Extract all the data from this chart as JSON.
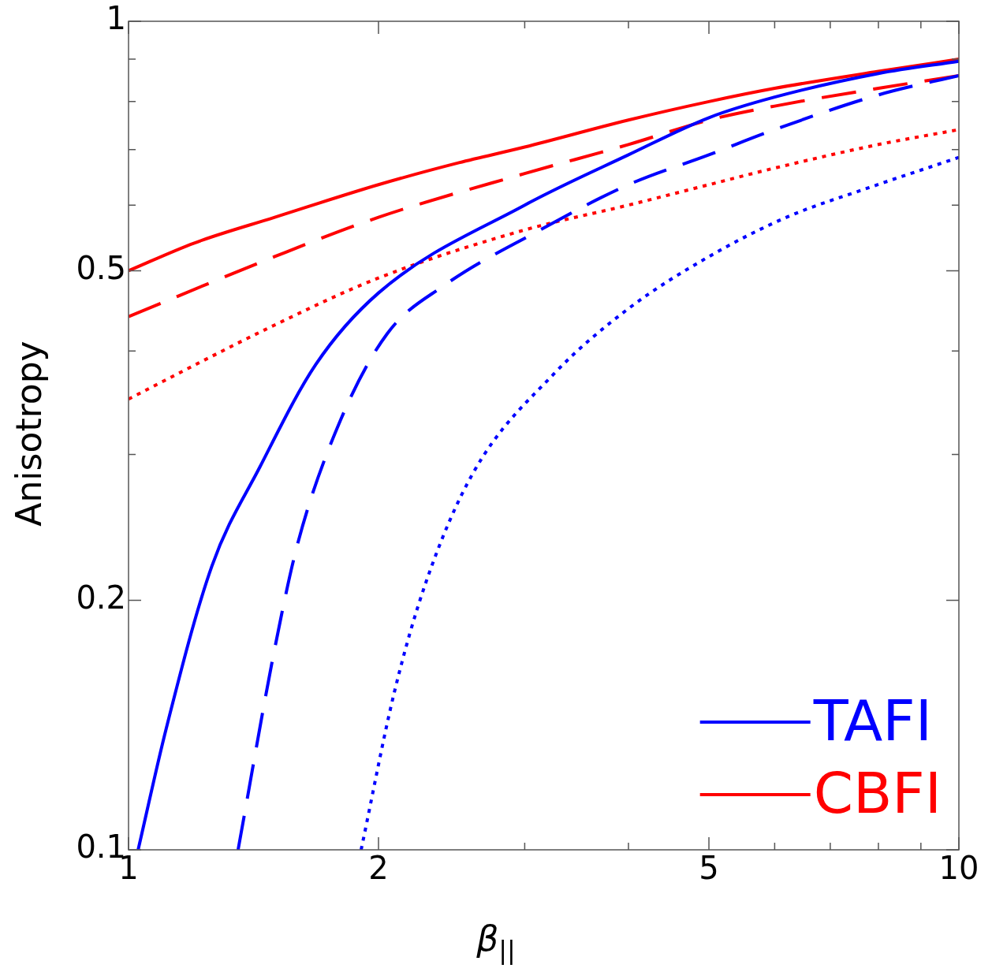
{
  "chart_data": {
    "type": "line",
    "xlabel": "β$_{||}$",
    "ylabel": "Anisotropy",
    "log": "xy",
    "xlim": [
      1,
      10
    ],
    "ylim": [
      0.1,
      1
    ],
    "xticks": [
      1,
      2,
      {
        "value": 3,
        "label": null
      },
      {
        "value": 4,
        "label": null
      },
      5,
      {
        "value": 6,
        "label": null
      },
      {
        "value": 7,
        "label": null
      },
      {
        "value": 8,
        "label": null
      },
      {
        "value": 9,
        "label": null
      },
      10
    ],
    "yticks": [
      0.1,
      {
        "value": 0.3,
        "label": null
      },
      {
        "value": 0.4,
        "label": null
      },
      0.2,
      0.5,
      {
        "value": 0.6,
        "label": null
      },
      {
        "value": 0.7,
        "label": null
      },
      {
        "value": 0.8,
        "label": null
      },
      {
        "value": 0.9,
        "label": null
      },
      1
    ],
    "grid": false,
    "legend": "bottom right",
    "marker": "none",
    "series": [
      {
        "name": "TAFI",
        "color": "#0000ff",
        "line_style": "solid",
        "x": [
          1.027,
          1.11,
          1.26,
          1.44,
          1.68,
          2,
          3,
          4,
          5,
          6,
          8,
          10
        ],
        "values": [
          0.1,
          0.14,
          0.22,
          0.29,
          0.385,
          0.47,
          0.6,
          0.69,
          0.765,
          0.81,
          0.865,
          0.895
        ]
      },
      {
        "color": "#0000ff",
        "line_style": "dashed",
        "x": [
          1.355,
          1.5,
          1.6,
          1.8,
          2.05,
          2.4,
          3.1,
          4,
          5,
          6,
          8,
          10
        ],
        "values": [
          0.1,
          0.175,
          0.235,
          0.33,
          0.42,
          0.48,
          0.557,
          0.635,
          0.69,
          0.74,
          0.815,
          0.86
        ]
      },
      {
        "color": "#0000ff",
        "line_style": "dotted",
        "x": [
          1.906,
          2.09,
          2.28,
          2.6,
          3.25,
          4,
          5,
          6.2,
          7.8,
          10
        ],
        "values": [
          0.1,
          0.155,
          0.21,
          0.285,
          0.375,
          0.45,
          0.52,
          0.58,
          0.63,
          0.685
        ]
      },
      {
        "name": "CBFI",
        "color": "#ff0000",
        "line_style": "solid",
        "x": [
          1,
          1.2,
          1.5,
          2,
          2.5,
          3,
          4,
          5,
          6,
          8,
          10
        ],
        "values": [
          0.5,
          0.54,
          0.58,
          0.635,
          0.675,
          0.705,
          0.76,
          0.8,
          0.83,
          0.87,
          0.9
        ]
      },
      {
        "color": "#ff0000",
        "line_style": "dashed",
        "x": [
          1,
          1.5,
          2,
          3,
          4,
          5,
          6,
          8,
          10
        ],
        "values": [
          0.44,
          0.52,
          0.58,
          0.655,
          0.71,
          0.76,
          0.79,
          0.83,
          0.86
        ]
      },
      {
        "color": "#ff0000",
        "line_style": "dotted",
        "x": [
          1,
          1.5,
          2,
          3,
          4,
          5,
          6,
          8,
          10
        ],
        "values": [
          0.35,
          0.43,
          0.49,
          0.56,
          0.6,
          0.635,
          0.665,
          0.71,
          0.74
        ]
      }
    ]
  }
}
